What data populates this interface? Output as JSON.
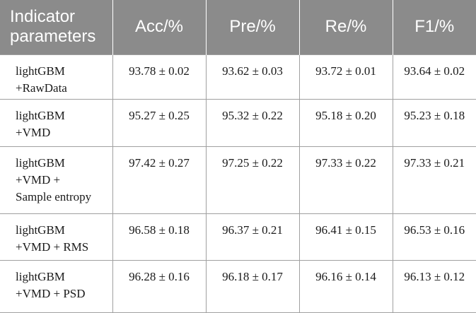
{
  "table": {
    "headers": [
      "Indicator parameters",
      "Acc/%",
      "Pre/%",
      "Re/%",
      "F1/%"
    ],
    "header_first_lines": [
      "Indicator",
      "parameters"
    ],
    "rows": [
      {
        "method_lines": [
          "lightGBM",
          "+RawData"
        ],
        "values": [
          "93.78 ± 0.02",
          "93.62 ± 0.03",
          "93.72 ± 0.01",
          "93.64 ± 0.02"
        ]
      },
      {
        "method_lines": [
          "lightGBM",
          "+VMD"
        ],
        "values": [
          "95.27 ± 0.25",
          "95.32 ± 0.22",
          "95.18 ± 0.20",
          "95.23 ± 0.18"
        ]
      },
      {
        "method_lines": [
          "lightGBM",
          "+VMD +",
          "Sample entropy"
        ],
        "values": [
          "97.42 ± 0.27",
          "97.25 ± 0.22",
          "97.33 ± 0.22",
          "97.33 ± 0.21"
        ]
      },
      {
        "method_lines": [
          "lightGBM",
          "+VMD + RMS"
        ],
        "values": [
          "96.58 ± 0.18",
          "96.37 ± 0.21",
          "96.41 ± 0.15",
          "96.53 ± 0.16"
        ]
      },
      {
        "method_lines": [
          "lightGBM",
          "+VMD + PSD"
        ],
        "values": [
          "96.28 ± 0.16",
          "96.18 ± 0.17",
          "96.16 ± 0.14",
          "96.13 ± 0.12"
        ]
      }
    ]
  },
  "colors": {
    "header_bg": "#8b8b8b",
    "header_text": "#ffffff",
    "grid_line": "#a0a0a0",
    "body_text": "#1a1a1a"
  }
}
